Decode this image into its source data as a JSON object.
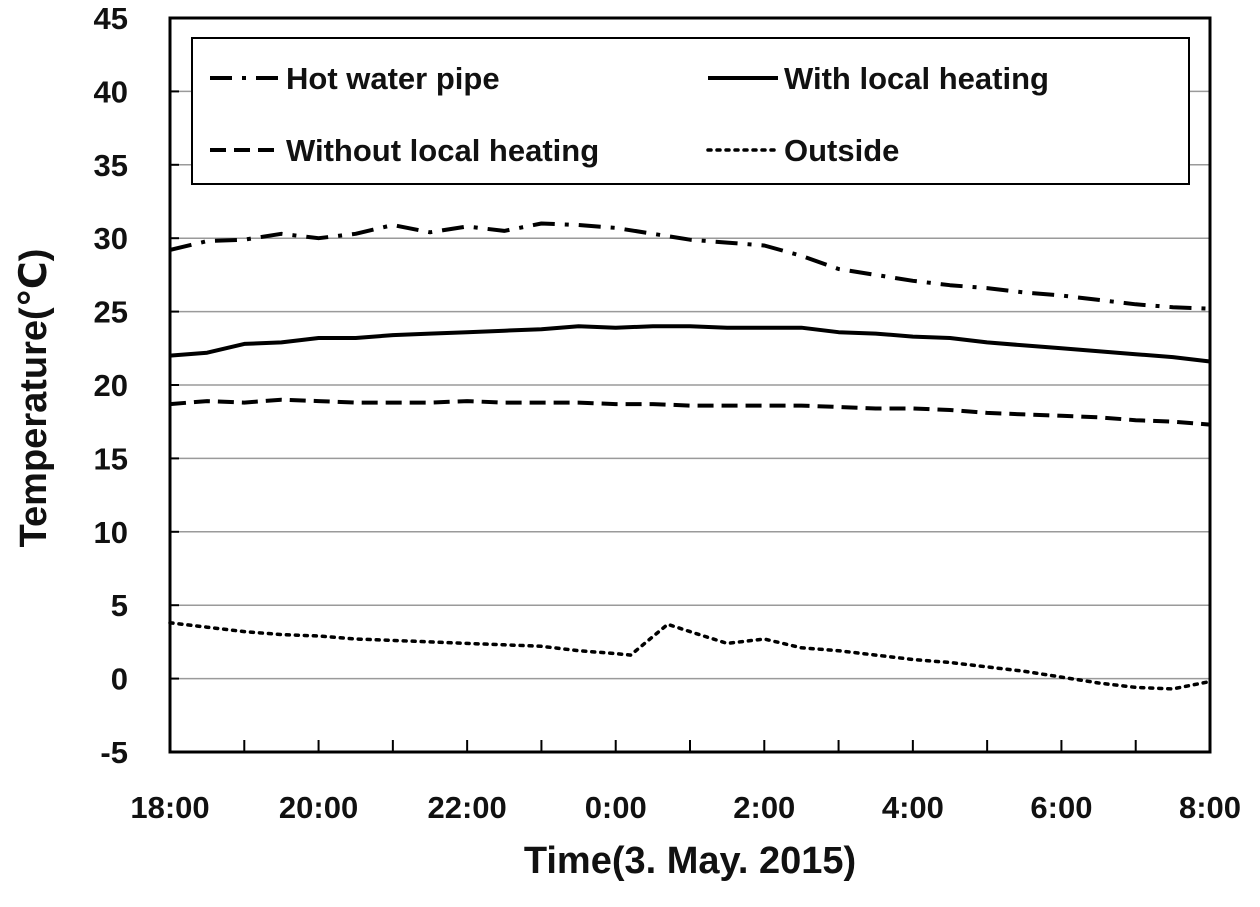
{
  "chart_data": {
    "type": "line",
    "title": "",
    "xlabel": "Time(3. May. 2015)",
    "ylabel": "Temperature(℃)",
    "ylim": [
      -5,
      45
    ],
    "yticks": [
      -5,
      0,
      5,
      10,
      15,
      20,
      25,
      30,
      35,
      40,
      45
    ],
    "xlim": [
      0,
      14
    ],
    "xticks": [
      {
        "value": 0,
        "label": "18:00"
      },
      {
        "value": 2,
        "label": "20:00"
      },
      {
        "value": 4,
        "label": "22:00"
      },
      {
        "value": 6,
        "label": "0:00"
      },
      {
        "value": 8,
        "label": "2:00"
      },
      {
        "value": 10,
        "label": "4:00"
      },
      {
        "value": 12,
        "label": "6:00"
      },
      {
        "value": 14,
        "label": "8:00"
      }
    ],
    "x_unit": "hours since 18:00",
    "grid": "horizontal",
    "legend_position": "top",
    "series": [
      {
        "name": "Hot water pipe",
        "style": "dashdot",
        "x": [
          0,
          0.5,
          1,
          1.5,
          2,
          2.5,
          3,
          3.5,
          4,
          4.5,
          5,
          5.5,
          6,
          6.5,
          7,
          7.5,
          8,
          8.5,
          9,
          9.5,
          10,
          10.5,
          11,
          11.5,
          12,
          12.5,
          13,
          13.5,
          14
        ],
        "values": [
          29.2,
          29.8,
          29.9,
          30.3,
          30.0,
          30.3,
          30.9,
          30.4,
          30.8,
          30.5,
          31.0,
          30.9,
          30.7,
          30.3,
          29.9,
          29.7,
          29.5,
          28.8,
          27.9,
          27.5,
          27.1,
          26.8,
          26.6,
          26.3,
          26.1,
          25.8,
          25.5,
          25.3,
          25.2
        ]
      },
      {
        "name": "With local heating",
        "style": "solid",
        "x": [
          0,
          0.5,
          1,
          1.5,
          2,
          2.5,
          3,
          3.5,
          4,
          4.5,
          5,
          5.5,
          6,
          6.5,
          7,
          7.5,
          8,
          8.5,
          9,
          9.5,
          10,
          10.5,
          11,
          11.5,
          12,
          12.5,
          13,
          13.5,
          14
        ],
        "values": [
          22.0,
          22.2,
          22.8,
          22.9,
          23.2,
          23.2,
          23.4,
          23.5,
          23.6,
          23.7,
          23.8,
          24.0,
          23.9,
          24.0,
          24.0,
          23.9,
          23.9,
          23.9,
          23.6,
          23.5,
          23.3,
          23.2,
          22.9,
          22.7,
          22.5,
          22.3,
          22.1,
          21.9,
          21.6
        ]
      },
      {
        "name": "Without local heating",
        "style": "dashed",
        "x": [
          0,
          0.5,
          1,
          1.5,
          2,
          2.5,
          3,
          3.5,
          4,
          4.5,
          5,
          5.5,
          6,
          6.5,
          7,
          7.5,
          8,
          8.5,
          9,
          9.5,
          10,
          10.5,
          11,
          11.5,
          12,
          12.5,
          13,
          13.5,
          14
        ],
        "values": [
          18.7,
          18.9,
          18.8,
          19.0,
          18.9,
          18.8,
          18.8,
          18.8,
          18.9,
          18.8,
          18.8,
          18.8,
          18.7,
          18.7,
          18.6,
          18.6,
          18.6,
          18.6,
          18.5,
          18.4,
          18.4,
          18.3,
          18.1,
          18.0,
          17.9,
          17.8,
          17.6,
          17.5,
          17.3
        ]
      },
      {
        "name": "Outside",
        "style": "dotted",
        "x": [
          0,
          0.5,
          1,
          1.5,
          2,
          2.5,
          3,
          3.5,
          4,
          4.5,
          5,
          5.5,
          6,
          6.2,
          6.7,
          7,
          7.5,
          8,
          8.5,
          9,
          9.5,
          10,
          10.5,
          11,
          11.5,
          12,
          12.5,
          13,
          13.5,
          14
        ],
        "values": [
          3.8,
          3.5,
          3.2,
          3.0,
          2.9,
          2.7,
          2.6,
          2.5,
          2.4,
          2.3,
          2.2,
          1.9,
          1.7,
          1.6,
          3.7,
          3.2,
          2.4,
          2.7,
          2.1,
          1.9,
          1.6,
          1.3,
          1.1,
          0.8,
          0.5,
          0.1,
          -0.3,
          -0.6,
          -0.7,
          -0.2
        ]
      }
    ]
  }
}
